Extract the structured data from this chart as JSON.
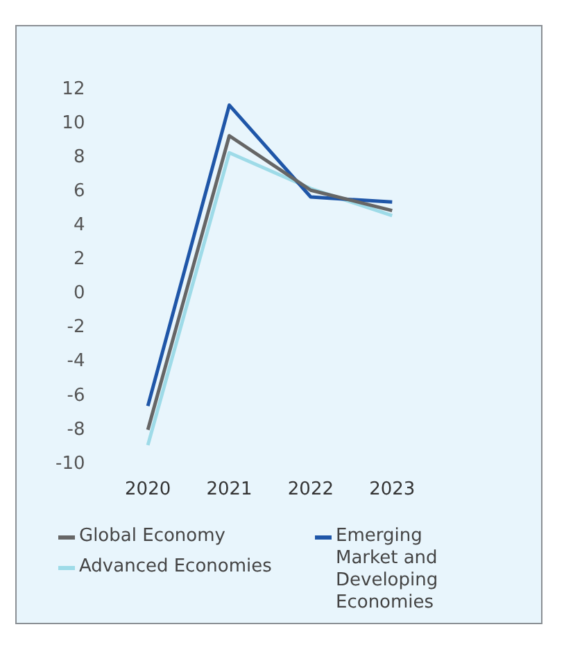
{
  "chart_data": {
    "type": "line",
    "categories": [
      "2020",
      "2021",
      "2022",
      "2023"
    ],
    "series": [
      {
        "name": "Global Economy",
        "color": "#666666",
        "values": [
          -8.0,
          9.3,
          6.1,
          4.9
        ]
      },
      {
        "name": "Emerging Market and Developing Economies",
        "color": "#1f56a8",
        "values": [
          -6.6,
          11.1,
          5.7,
          5.4
        ]
      },
      {
        "name": "Advanced Economies",
        "color": "#9edbe8",
        "values": [
          -8.9,
          8.3,
          6.2,
          4.6
        ]
      }
    ],
    "ylim": [
      -10,
      12
    ],
    "yticks": [
      -10,
      -8,
      -6,
      -4,
      -2,
      0,
      2,
      4,
      6,
      8,
      10,
      12
    ],
    "grid": false,
    "legend": "bottom",
    "marker": "none",
    "line_style": "solid"
  }
}
